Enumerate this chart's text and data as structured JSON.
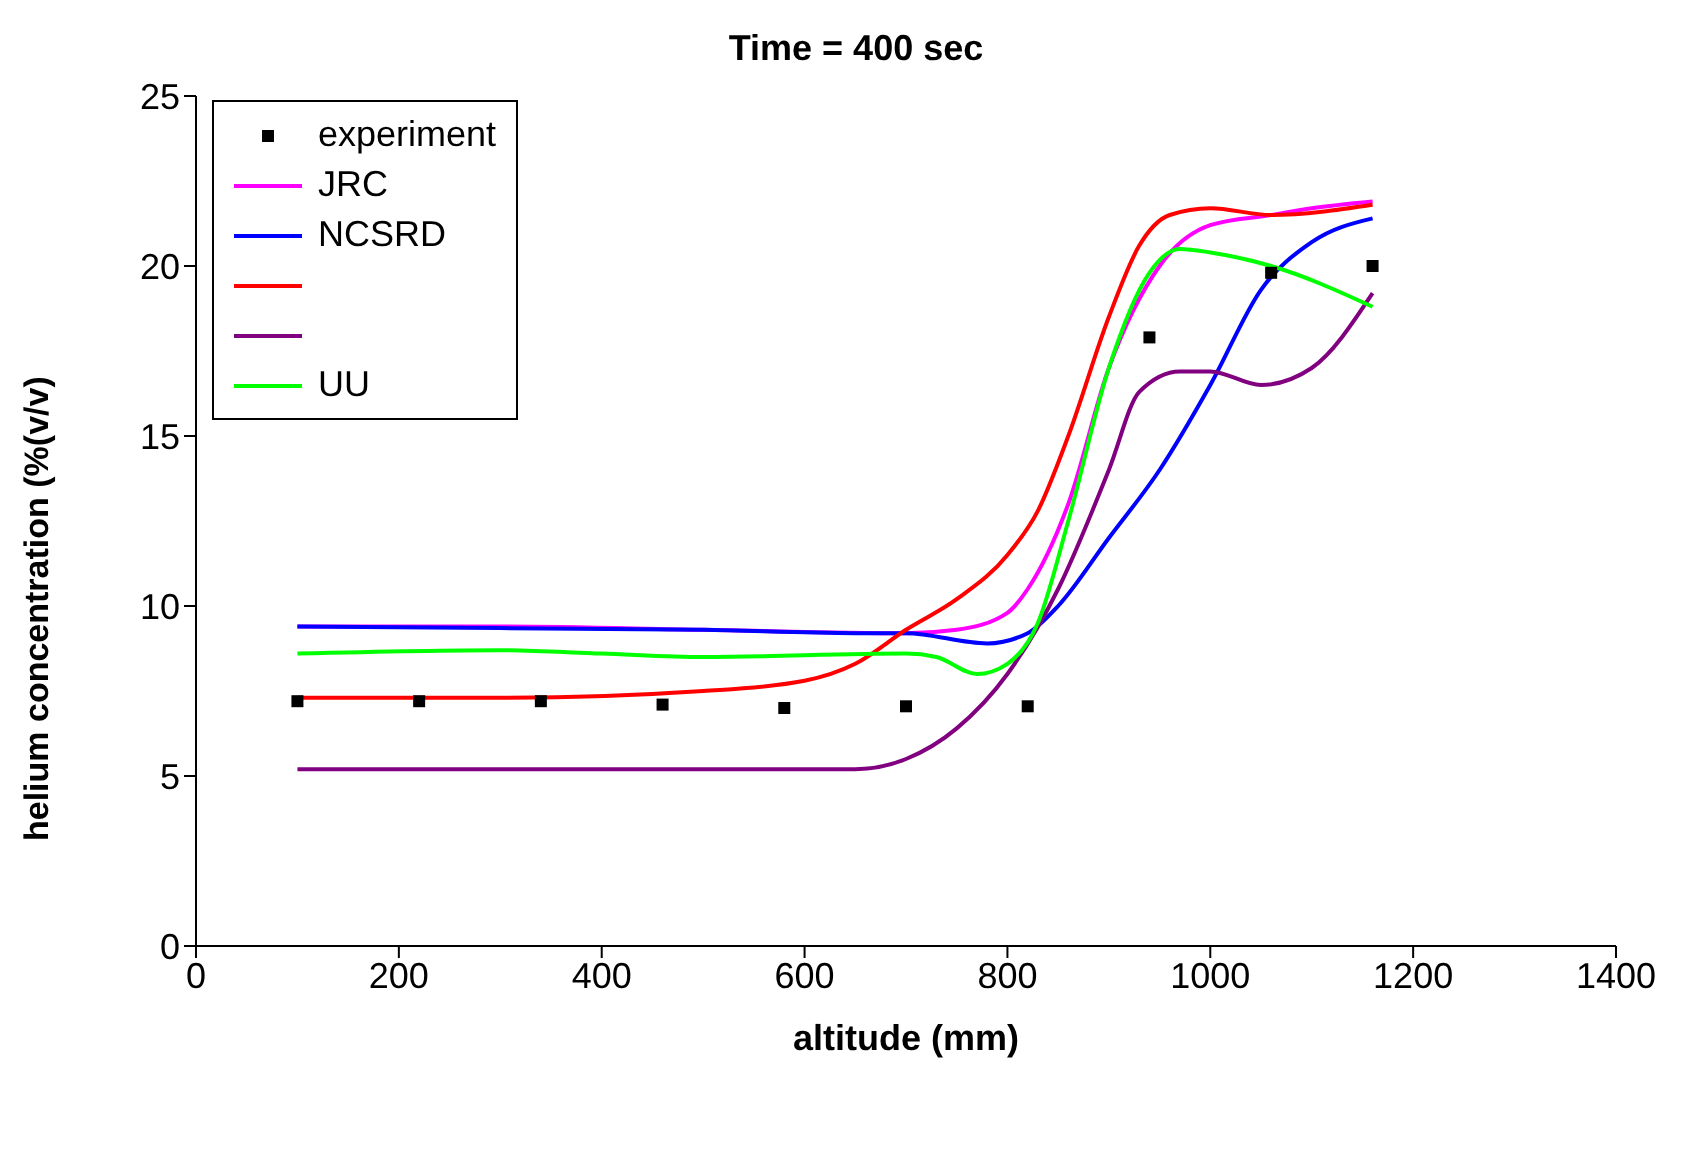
{
  "chart_data": {
    "type": "line",
    "title": "Time = 400 sec",
    "xlabel": "altitude (mm)",
    "ylabel": "helium concentration (%(v/v)",
    "xlim": [
      0,
      1400
    ],
    "xticks": [
      0,
      200,
      400,
      600,
      800,
      1000,
      1200,
      1400
    ],
    "ylim": [
      0,
      25
    ],
    "yticks": [
      0,
      5,
      10,
      15,
      20,
      25
    ],
    "grid": false,
    "legend": "top left",
    "line_style": "solid",
    "series": [
      {
        "name": "experiment",
        "type": "scatter",
        "marker": "square",
        "color": "#000000",
        "x": [
          100,
          220,
          340,
          460,
          580,
          700,
          820,
          940,
          1060,
          1160
        ],
        "values": [
          7.2,
          7.2,
          7.2,
          7.1,
          7.0,
          7.05,
          7.05,
          17.9,
          19.8,
          20.0
        ]
      },
      {
        "name": "JRC",
        "color": "#ff00ff",
        "x": [
          100,
          300,
          500,
          700,
          750,
          800,
          820,
          860,
          900,
          950,
          1000,
          1060,
          1100,
          1160
        ],
        "values": [
          9.4,
          9.4,
          9.3,
          9.2,
          9.3,
          9.8,
          10.5,
          13,
          17,
          20,
          21.2,
          21.5,
          21.7,
          21.9
        ]
      },
      {
        "name": "NCSRD",
        "color": "#0000ff",
        "x": [
          100,
          300,
          500,
          650,
          700,
          780,
          820,
          850,
          900,
          950,
          1000,
          1050,
          1100,
          1160
        ],
        "values": [
          9.4,
          9.35,
          9.3,
          9.2,
          9.2,
          8.9,
          9.2,
          10,
          12,
          14,
          16.5,
          19.3,
          20.7,
          21.4
        ]
      },
      {
        "color": "#ff0000",
        "x": [
          100,
          300,
          500,
          600,
          650,
          700,
          750,
          800,
          830,
          860,
          900,
          930,
          960,
          1000,
          1060,
          1160
        ],
        "values": [
          7.3,
          7.3,
          7.5,
          7.8,
          8.3,
          9.3,
          10.2,
          11.5,
          12.8,
          15,
          18.5,
          20.6,
          21.5,
          21.7,
          21.5,
          21.8
        ]
      },
      {
        "color": "#800080",
        "x": [
          100,
          300,
          500,
          650,
          700,
          750,
          800,
          850,
          900,
          930,
          970,
          1000,
          1050,
          1100,
          1160
        ],
        "values": [
          5.2,
          5.2,
          5.2,
          5.2,
          5.5,
          6.4,
          8,
          10.5,
          14,
          16.3,
          16.9,
          16.9,
          16.5,
          17,
          19.2
        ]
      },
      {
        "name": "UU",
        "color": "#00ff00",
        "x": [
          100,
          300,
          400,
          500,
          700,
          730,
          770,
          800,
          830,
          860,
          900,
          940,
          970,
          1000,
          1060,
          1160
        ],
        "values": [
          8.6,
          8.7,
          8.6,
          8.5,
          8.6,
          8.5,
          8.0,
          8.3,
          9.5,
          12.5,
          17,
          19.8,
          20.5,
          20.4,
          20,
          18.8
        ]
      }
    ]
  }
}
